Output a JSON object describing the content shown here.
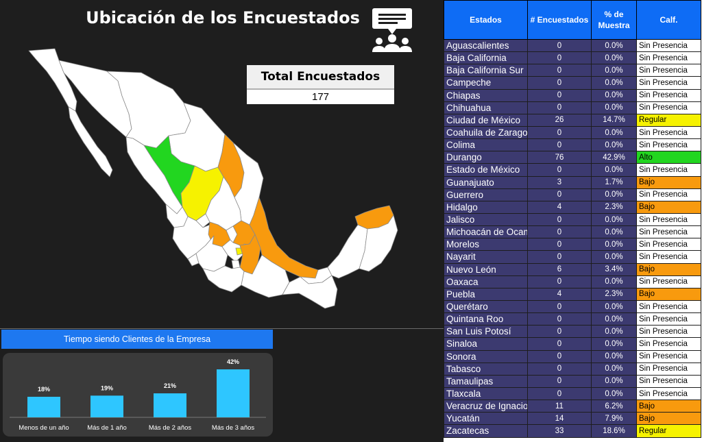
{
  "title": "Ubicación de los Encuestados",
  "total": {
    "label": "Total Encuestados",
    "value": "177"
  },
  "colors": {
    "alto": "#22d620",
    "regular": "#f6f200",
    "bajo": "#f89a0e",
    "sin": "#ffffff",
    "bar": "#2ec6ff",
    "header": "#0e6cf5",
    "row": "#3c3a70"
  },
  "icons": [
    "presentation-people-icon"
  ],
  "table": {
    "headers": [
      "Estados",
      "# Encuestados",
      "% de Muestra",
      "Calf."
    ],
    "rows": [
      {
        "estado": "Aguascalientes",
        "n": "0",
        "pct": "0.0%",
        "calf": "Sin Presencia",
        "level": "sin"
      },
      {
        "estado": "Baja California",
        "n": "0",
        "pct": "0.0%",
        "calf": "Sin Presencia",
        "level": "sin"
      },
      {
        "estado": "Baja California Sur",
        "n": "0",
        "pct": "0.0%",
        "calf": "Sin Presencia",
        "level": "sin"
      },
      {
        "estado": "Campeche",
        "n": "0",
        "pct": "0.0%",
        "calf": "Sin Presencia",
        "level": "sin"
      },
      {
        "estado": "Chiapas",
        "n": "0",
        "pct": "0.0%",
        "calf": "Sin Presencia",
        "level": "sin"
      },
      {
        "estado": "Chihuahua",
        "n": "0",
        "pct": "0.0%",
        "calf": "Sin Presencia",
        "level": "sin"
      },
      {
        "estado": "Ciudad de México",
        "n": "26",
        "pct": "14.7%",
        "calf": "Regular",
        "level": "regular"
      },
      {
        "estado": "Coahuila de Zaragoza",
        "n": "0",
        "pct": "0.0%",
        "calf": "Sin Presencia",
        "level": "sin"
      },
      {
        "estado": "Colima",
        "n": "0",
        "pct": "0.0%",
        "calf": "Sin Presencia",
        "level": "sin"
      },
      {
        "estado": "Durango",
        "n": "76",
        "pct": "42.9%",
        "calf": "Alto",
        "level": "alto"
      },
      {
        "estado": "Estado de México",
        "n": "0",
        "pct": "0.0%",
        "calf": "Sin Presencia",
        "level": "sin"
      },
      {
        "estado": "Guanajuato",
        "n": "3",
        "pct": "1.7%",
        "calf": "Bajo",
        "level": "bajo"
      },
      {
        "estado": "Guerrero",
        "n": "0",
        "pct": "0.0%",
        "calf": "Sin Presencia",
        "level": "sin"
      },
      {
        "estado": "Hidalgo",
        "n": "4",
        "pct": "2.3%",
        "calf": "Bajo",
        "level": "bajo"
      },
      {
        "estado": "Jalisco",
        "n": "0",
        "pct": "0.0%",
        "calf": "Sin Presencia",
        "level": "sin"
      },
      {
        "estado": "Michoacán de Ocampo",
        "n": "0",
        "pct": "0.0%",
        "calf": "Sin Presencia",
        "level": "sin"
      },
      {
        "estado": "Morelos",
        "n": "0",
        "pct": "0.0%",
        "calf": "Sin Presencia",
        "level": "sin"
      },
      {
        "estado": "Nayarit",
        "n": "0",
        "pct": "0.0%",
        "calf": "Sin Presencia",
        "level": "sin"
      },
      {
        "estado": "Nuevo León",
        "n": "6",
        "pct": "3.4%",
        "calf": "Bajo",
        "level": "bajo"
      },
      {
        "estado": "Oaxaca",
        "n": "0",
        "pct": "0.0%",
        "calf": "Sin Presencia",
        "level": "sin"
      },
      {
        "estado": "Puebla",
        "n": "4",
        "pct": "2.3%",
        "calf": "Bajo",
        "level": "bajo"
      },
      {
        "estado": "Querétaro",
        "n": "0",
        "pct": "0.0%",
        "calf": "Sin Presencia",
        "level": "sin"
      },
      {
        "estado": "Quintana Roo",
        "n": "0",
        "pct": "0.0%",
        "calf": "Sin Presencia",
        "level": "sin"
      },
      {
        "estado": "San Luis Potosí",
        "n": "0",
        "pct": "0.0%",
        "calf": "Sin Presencia",
        "level": "sin"
      },
      {
        "estado": "Sinaloa",
        "n": "0",
        "pct": "0.0%",
        "calf": "Sin Presencia",
        "level": "sin"
      },
      {
        "estado": "Sonora",
        "n": "0",
        "pct": "0.0%",
        "calf": "Sin Presencia",
        "level": "sin"
      },
      {
        "estado": "Tabasco",
        "n": "0",
        "pct": "0.0%",
        "calf": "Sin Presencia",
        "level": "sin"
      },
      {
        "estado": "Tamaulipas",
        "n": "0",
        "pct": "0.0%",
        "calf": "Sin Presencia",
        "level": "sin"
      },
      {
        "estado": "Tlaxcala",
        "n": "0",
        "pct": "0.0%",
        "calf": "Sin Presencia",
        "level": "sin"
      },
      {
        "estado": "Veracruz de Ignacio de la Llave",
        "n": "11",
        "pct": "6.2%",
        "calf": "Bajo",
        "level": "bajo"
      },
      {
        "estado": "Yucatán",
        "n": "14",
        "pct": "7.9%",
        "calf": "Bajo",
        "level": "bajo"
      },
      {
        "estado": "Zacatecas",
        "n": "33",
        "pct": "18.6%",
        "calf": "Regular",
        "level": "regular"
      }
    ]
  },
  "chart_data": {
    "type": "bar",
    "title": "Tiempo siendo Clientes de la Empresa",
    "categories": [
      "Menos de un año",
      "Más de 1 año",
      "Más de 2 años",
      "Más de 3 años"
    ],
    "values": [
      18,
      19,
      21,
      42
    ],
    "labels": [
      "18%",
      "19%",
      "21%",
      "42%"
    ],
    "ylim": [
      0,
      42
    ],
    "grid": false,
    "legend": "none"
  }
}
